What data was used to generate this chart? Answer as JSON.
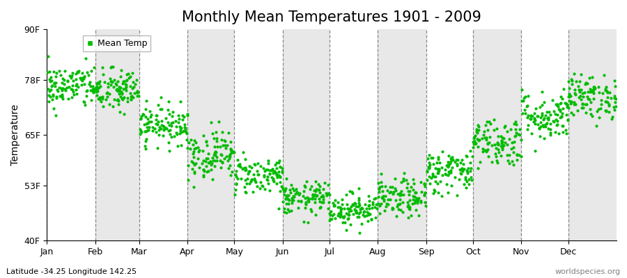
{
  "title": "Monthly Mean Temperatures 1901 - 2009",
  "ylabel": "Temperature",
  "dot_color": "#00BB00",
  "background_color": "#FFFFFF",
  "band_color": "#E8E8E8",
  "yticks": [
    40,
    53,
    65,
    78,
    90
  ],
  "ytick_labels": [
    "40F",
    "53F",
    "65F",
    "78F",
    "90F"
  ],
  "ylim": [
    40,
    90
  ],
  "months": [
    "Jan",
    "Feb",
    "Mar",
    "Apr",
    "May",
    "Jun",
    "Jul",
    "Aug",
    "Sep",
    "Oct",
    "Nov",
    "Dec"
  ],
  "month_days": [
    31,
    28,
    31,
    30,
    31,
    30,
    31,
    31,
    30,
    31,
    30,
    31
  ],
  "mean_temps_f": [
    76.5,
    75.5,
    67.5,
    60.5,
    55.5,
    50.0,
    47.5,
    50.0,
    56.5,
    63.5,
    69.5,
    74.0
  ],
  "spread_f": [
    4.0,
    4.0,
    3.5,
    4.5,
    3.5,
    3.0,
    3.0,
    3.5,
    4.0,
    4.5,
    4.5,
    4.0
  ],
  "n_years": 109,
  "legend_label": "Mean Temp",
  "bottom_left_text": "Latitude -34.25 Longitude 142.25",
  "bottom_right_text": "worldspecies.org",
  "title_fontsize": 15,
  "axis_fontsize": 10,
  "tick_fontsize": 9,
  "annotation_fontsize": 8,
  "marker_size": 3,
  "seed": 42
}
